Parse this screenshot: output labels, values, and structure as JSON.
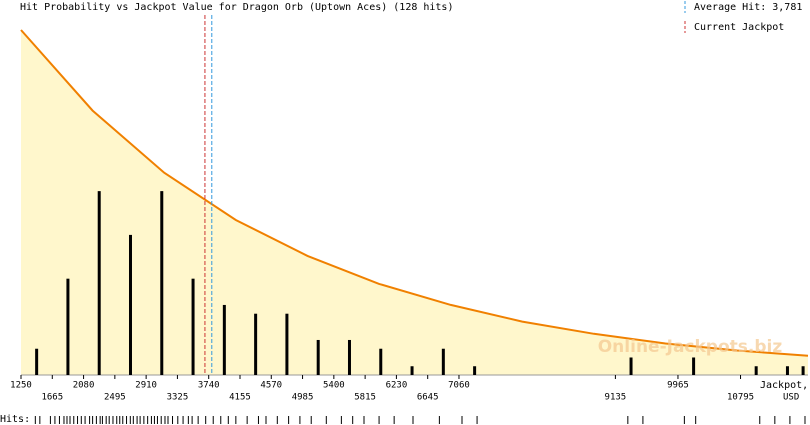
{
  "chart_data": {
    "type": "bar",
    "title": "Hit Probability vs Jackpot Value for Dragon Orb (Uptown Aces) (128 hits)",
    "xlabel": [
      "Jackpot,",
      "USD"
    ],
    "watermark": "Online-Jackpots.biz",
    "x": [
      1457.5,
      1872.5,
      2287.5,
      2702.5,
      3117.5,
      3532.5,
      3947.5,
      4362.5,
      4777.5,
      5192.5,
      5607.5,
      6022.5,
      6437.5,
      6852.5,
      7267.5,
      9342.5,
      10172.5,
      11002.5,
      11417.5,
      11625
    ],
    "values": [
      3,
      11,
      21,
      16,
      21,
      11,
      8,
      7,
      7,
      4,
      4,
      3,
      1,
      3,
      1,
      2,
      2,
      1,
      1,
      1
    ],
    "color": "#000000",
    "curve": {
      "color": "#f08000",
      "fill": "#fff7cc",
      "x": [
        1250,
        2200,
        3150,
        4100,
        5050,
        6000,
        6950,
        7900,
        8850,
        9800,
        10750,
        11690
      ],
      "values": [
        39.4,
        30.2,
        23.1,
        17.7,
        13.6,
        10.4,
        8.0,
        6.1,
        4.7,
        3.6,
        2.8,
        2.2
      ]
    },
    "reference_lines": [
      {
        "name": "Average Hit: 3,781",
        "value": 3781,
        "color": "#3399dd"
      },
      {
        "name": "Current Jackpot",
        "value": 3690,
        "color": "#cc3333"
      }
    ],
    "hits_label": "Hits:",
    "hits": [
      1440,
      1500,
      1640,
      1700,
      1760,
      1820,
      1860,
      1900,
      1950,
      2000,
      2050,
      2100,
      2160,
      2200,
      2250,
      2300,
      2330,
      2380,
      2420,
      2470,
      2520,
      2560,
      2600,
      2650,
      2700,
      2740,
      2790,
      2830,
      2880,
      2930,
      2980,
      3020,
      3060,
      3110,
      3160,
      3200,
      3260,
      3330,
      3400,
      3470,
      3520,
      3600,
      3700,
      3800,
      3900,
      4000,
      4100,
      4250,
      4400,
      4500,
      4650,
      4800,
      4950,
      5100,
      5300,
      5500,
      5650,
      5800,
      6000,
      6200,
      6450,
      6800,
      7100,
      7300,
      9300,
      9500,
      10050,
      10200,
      11050,
      11250,
      11450,
      11650
    ],
    "xlim": [
      1250,
      11690
    ],
    "ylim": [
      0,
      39.4
    ],
    "xticks": [
      1250,
      1665,
      2080,
      2495,
      2910,
      3325,
      3740,
      4155,
      4570,
      4985,
      5400,
      5815,
      6230,
      6645,
      7060,
      9135,
      9965,
      10795
    ]
  }
}
